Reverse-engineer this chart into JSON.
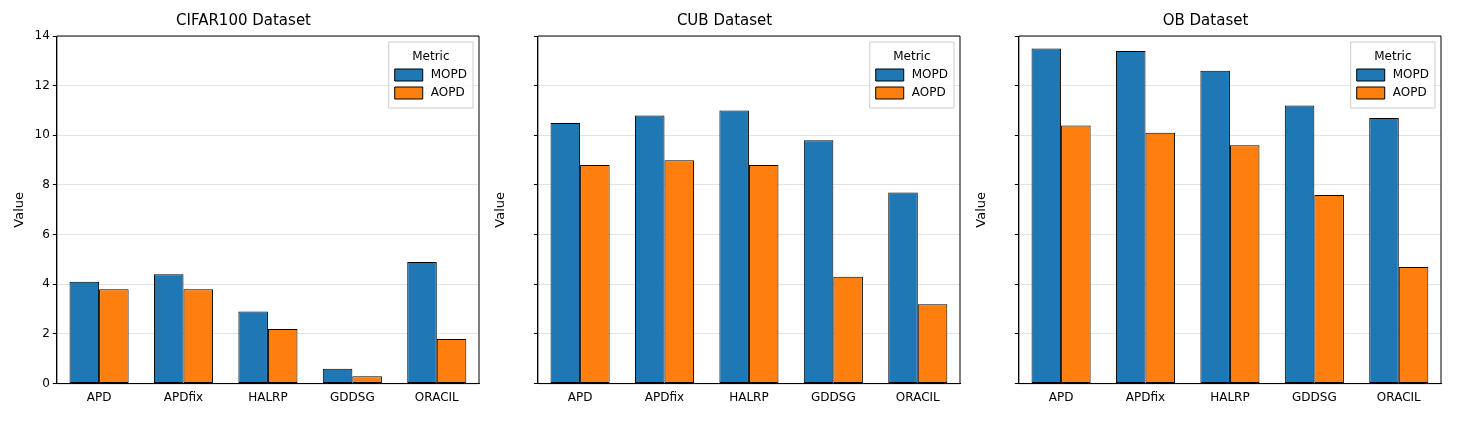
{
  "chart_data": [
    {
      "type": "bar",
      "title": "CIFAR100 Dataset",
      "ylabel": "Value",
      "categories": [
        "APD",
        "APDfix",
        "HALRP",
        "GDDSG",
        "ORACIL"
      ],
      "legend_title": "Metric",
      "legend": "top right",
      "grid": "y",
      "ylim": [
        0,
        14
      ],
      "yticks": [
        0,
        2,
        4,
        6,
        8,
        10,
        12,
        14
      ],
      "series": [
        {
          "name": "MOPD",
          "color": "#1f77b4",
          "values": [
            4.1,
            4.4,
            2.9,
            0.6,
            4.9
          ]
        },
        {
          "name": "AOPD",
          "color": "#ff7f0e",
          "values": [
            3.8,
            3.8,
            2.2,
            0.3,
            1.8
          ]
        }
      ]
    },
    {
      "type": "bar",
      "title": "CUB Dataset",
      "ylabel": "Value",
      "categories": [
        "APD",
        "APDfix",
        "HALRP",
        "GDDSG",
        "ORACIL"
      ],
      "legend_title": "Metric",
      "legend": "top right",
      "grid": "y",
      "ylim": [
        0,
        14
      ],
      "yticks": [
        0,
        2,
        4,
        6,
        8,
        10,
        12,
        14
      ],
      "tick_labels": "x",
      "series": [
        {
          "name": "MOPD",
          "color": "#1f77b4",
          "values": [
            10.5,
            10.8,
            11.0,
            9.8,
            7.7
          ]
        },
        {
          "name": "AOPD",
          "color": "#ff7f0e",
          "values": [
            8.8,
            9.0,
            8.8,
            4.3,
            3.2
          ]
        }
      ]
    },
    {
      "type": "bar",
      "title": "OB Dataset",
      "ylabel": "Value",
      "categories": [
        "APD",
        "APDfix",
        "HALRP",
        "GDDSG",
        "ORACIL"
      ],
      "legend_title": "Metric",
      "legend": "top right",
      "grid": "y",
      "ylim": [
        0,
        14
      ],
      "yticks": [
        0,
        2,
        4,
        6,
        8,
        10,
        12,
        14
      ],
      "tick_labels": "x",
      "series": [
        {
          "name": "MOPD",
          "color": "#1f77b4",
          "values": [
            13.5,
            13.4,
            12.6,
            11.2,
            10.7
          ]
        },
        {
          "name": "AOPD",
          "color": "#ff7f0e",
          "values": [
            10.4,
            10.1,
            9.6,
            7.6,
            4.7
          ]
        }
      ]
    }
  ]
}
